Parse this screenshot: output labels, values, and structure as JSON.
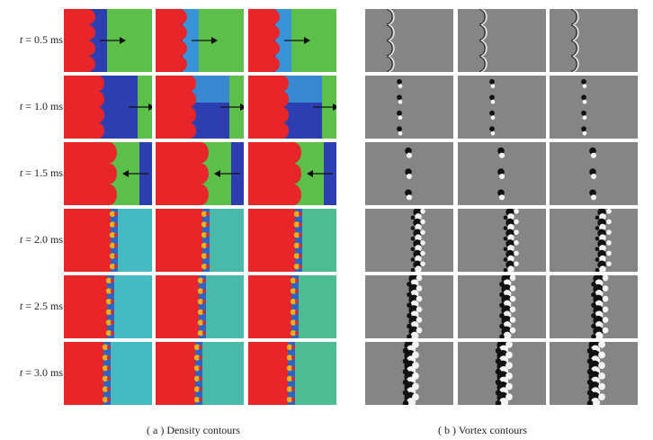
{
  "rows": [
    {
      "t_var": "t",
      "t_value": "= 0.5 ms",
      "arrow": "right"
    },
    {
      "t_var": "t",
      "t_value": "= 1.0 ms",
      "arrow": "right"
    },
    {
      "t_var": "t",
      "t_value": "= 1.5 ms",
      "arrow": "left"
    },
    {
      "t_var": "t",
      "t_value": "= 2.0 ms",
      "arrow": "none"
    },
    {
      "t_var": "t",
      "t_value": "= 2.5 ms",
      "arrow": "none"
    },
    {
      "t_var": "t",
      "t_value": "= 3.0 ms",
      "arrow": "none"
    }
  ],
  "captions": {
    "density": "( a )  Density contours",
    "vortex": "( b )  Vortex contours"
  },
  "colors": {
    "heavy_gas": "#e8262a",
    "light_gas": "#2d3fb0",
    "ambient_gas": "#5bbf4a",
    "mixed_gas": "#3fb8e8",
    "vortex_background": "#858585"
  }
}
